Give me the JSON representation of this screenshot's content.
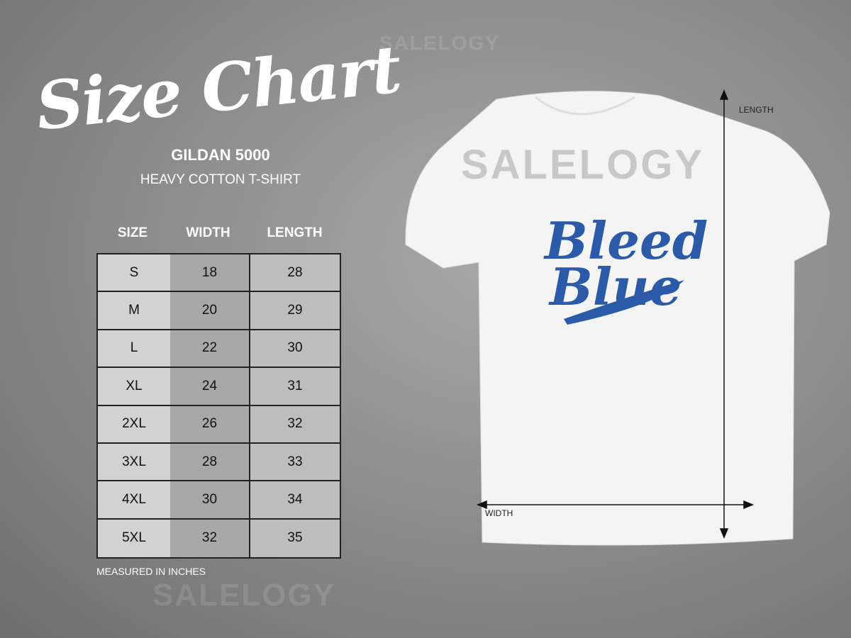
{
  "title": "Size Chart",
  "brand": "GILDAN 5000",
  "subtitle": "HEAVY COTTON T-SHIRT",
  "table": {
    "headers": [
      "SIZE",
      "WIDTH",
      "LENGTH"
    ],
    "rows": [
      [
        "S",
        "18",
        "28"
      ],
      [
        "M",
        "20",
        "29"
      ],
      [
        "L",
        "22",
        "30"
      ],
      [
        "XL",
        "24",
        "31"
      ],
      [
        "2XL",
        "26",
        "32"
      ],
      [
        "3XL",
        "28",
        "33"
      ],
      [
        "4XL",
        "30",
        "34"
      ],
      [
        "5XL",
        "32",
        "35"
      ]
    ]
  },
  "note": "MEASURED IN INCHES",
  "shirt": {
    "length_label": "LENGTH",
    "width_label": "WIDTH",
    "design_text": [
      "Bleed",
      "Blue"
    ],
    "design_color": "#2a5aa8",
    "shirt_color": "#f4f4f4"
  },
  "watermark": "SALELOGY"
}
